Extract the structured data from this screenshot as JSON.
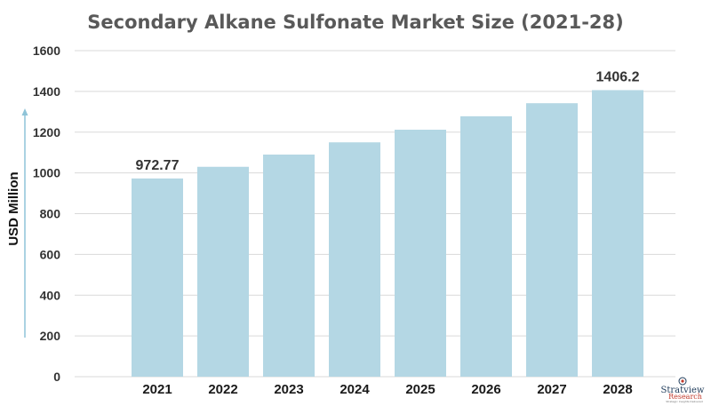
{
  "chart_data": {
    "type": "bar",
    "title": "Secondary Alkane Sulfonate Market Size (2021-28)",
    "ylabel": "USD Million",
    "xlabel": "",
    "categories": [
      "2021",
      "2022",
      "2023",
      "2024",
      "2025",
      "2026",
      "2027",
      "2028"
    ],
    "values": [
      972.77,
      1030,
      1090,
      1150,
      1212,
      1278,
      1342,
      1406.2
    ],
    "data_labels": [
      "972.77",
      "",
      "",
      "",
      "",
      "",
      "",
      "1406.2"
    ],
    "ylim": [
      0,
      1600
    ],
    "yticks": [
      "0",
      "200",
      "400",
      "600",
      "800",
      "1000",
      "1200",
      "1400",
      "1600"
    ],
    "grid": true,
    "legend": "none",
    "colors": {
      "bar": "#b4d7e4",
      "grid": "#d9d9d9",
      "arrow": "#8fc4d8"
    }
  },
  "logo": {
    "name": "Stratview",
    "sub": "Research",
    "tagline": "Strategic Insights Delivered"
  }
}
